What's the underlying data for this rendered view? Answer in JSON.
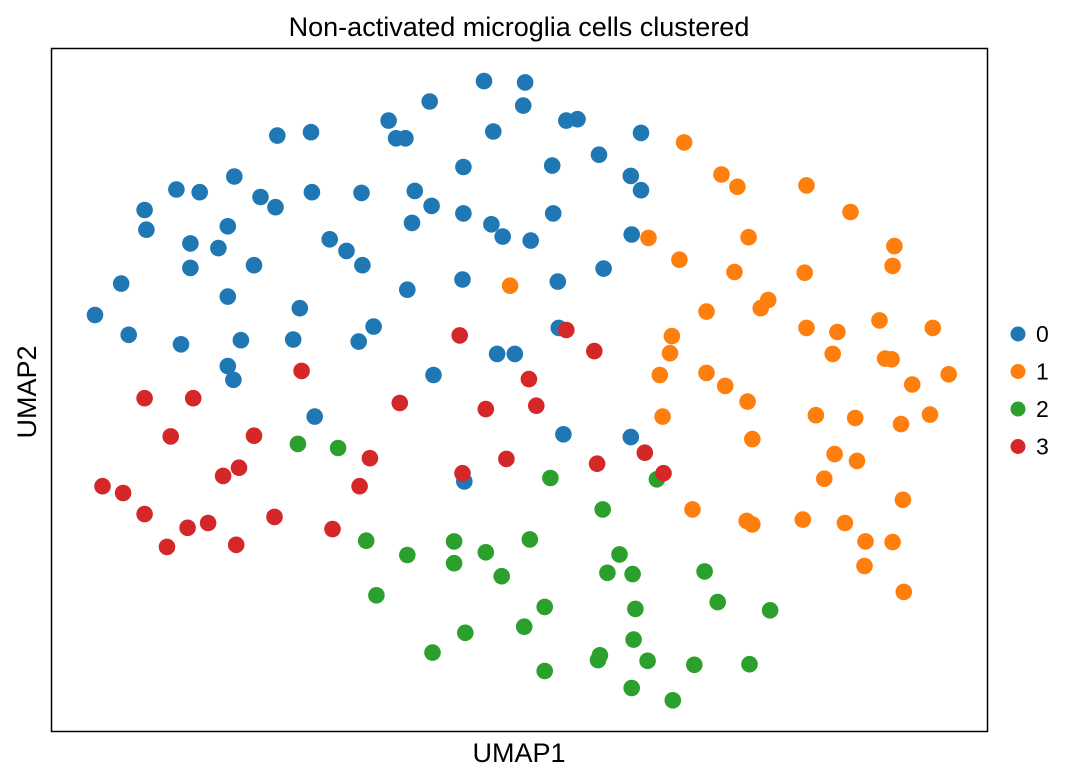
{
  "chart_data": {
    "type": "scatter",
    "title": "Non-activated microglia cells clustered",
    "xlabel": "UMAP1",
    "ylabel": "UMAP2",
    "xlim": [
      0,
      100
    ],
    "ylim": [
      0,
      100
    ],
    "grid": false,
    "ticks_shown": false,
    "legend_placement": "right, outside plot",
    "series": [
      {
        "name": "0",
        "color": "#1f77b4",
        "points": [
          [
            46.2,
            95.3
          ],
          [
            50.6,
            95.1
          ],
          [
            50.4,
            91.7
          ],
          [
            40.4,
            92.3
          ],
          [
            55.0,
            89.5
          ],
          [
            56.2,
            89.7
          ],
          [
            47.2,
            87.9
          ],
          [
            63.0,
            87.7
          ],
          [
            24.1,
            87.3
          ],
          [
            27.7,
            87.8
          ],
          [
            36.0,
            89.5
          ],
          [
            36.8,
            86.9
          ],
          [
            37.8,
            86.9
          ],
          [
            58.5,
            84.5
          ],
          [
            53.5,
            82.9
          ],
          [
            44.0,
            82.7
          ],
          [
            61.9,
            81.4
          ],
          [
            19.5,
            81.3
          ],
          [
            13.3,
            79.4
          ],
          [
            15.8,
            79.0
          ],
          [
            22.3,
            78.3
          ],
          [
            27.8,
            79.0
          ],
          [
            33.1,
            78.9
          ],
          [
            38.8,
            79.2
          ],
          [
            63.0,
            79.3
          ],
          [
            9.9,
            76.4
          ],
          [
            23.9,
            76.8
          ],
          [
            40.6,
            77.0
          ],
          [
            44.0,
            75.9
          ],
          [
            53.6,
            75.9
          ],
          [
            10.1,
            73.5
          ],
          [
            18.8,
            74.0
          ],
          [
            38.5,
            74.5
          ],
          [
            47.0,
            74.3
          ],
          [
            48.2,
            72.5
          ],
          [
            62.0,
            72.8
          ],
          [
            29.7,
            72.1
          ],
          [
            14.8,
            71.5
          ],
          [
            17.8,
            70.8
          ],
          [
            31.5,
            70.4
          ],
          [
            51.2,
            71.9
          ],
          [
            33.2,
            68.3
          ],
          [
            14.8,
            67.9
          ],
          [
            21.6,
            68.3
          ],
          [
            43.9,
            66.2
          ],
          [
            7.4,
            65.6
          ],
          [
            38.0,
            64.7
          ],
          [
            54.1,
            65.9
          ],
          [
            59.0,
            67.8
          ],
          [
            18.8,
            63.7
          ],
          [
            4.6,
            61.0
          ],
          [
            26.5,
            62.0
          ],
          [
            34.4,
            59.3
          ],
          [
            8.2,
            58.1
          ],
          [
            54.2,
            59.1
          ],
          [
            13.8,
            56.7
          ],
          [
            20.2,
            57.3
          ],
          [
            25.8,
            57.4
          ],
          [
            32.8,
            57.1
          ],
          [
            47.6,
            55.3
          ],
          [
            49.5,
            55.3
          ],
          [
            19.4,
            51.5
          ],
          [
            18.8,
            53.5
          ],
          [
            40.8,
            52.2
          ],
          [
            28.1,
            46.1
          ],
          [
            54.7,
            43.5
          ],
          [
            61.9,
            43.1
          ],
          [
            44.1,
            36.6
          ]
        ]
      },
      {
        "name": "1",
        "color": "#ff7f0e",
        "points": [
          [
            67.6,
            86.3
          ],
          [
            71.6,
            81.6
          ],
          [
            73.3,
            79.8
          ],
          [
            80.7,
            80.0
          ],
          [
            85.4,
            76.1
          ],
          [
            63.8,
            72.3
          ],
          [
            74.5,
            72.4
          ],
          [
            90.1,
            71.1
          ],
          [
            67.1,
            69.1
          ],
          [
            73.0,
            67.3
          ],
          [
            80.5,
            67.2
          ],
          [
            89.9,
            68.2
          ],
          [
            49.0,
            65.3
          ],
          [
            76.6,
            63.2
          ],
          [
            70.0,
            61.5
          ],
          [
            75.8,
            62.0
          ],
          [
            88.5,
            60.2
          ],
          [
            94.2,
            59.1
          ],
          [
            66.3,
            57.9
          ],
          [
            80.7,
            59.1
          ],
          [
            84.0,
            58.5
          ],
          [
            66.1,
            55.4
          ],
          [
            83.5,
            55.3
          ],
          [
            89.1,
            54.6
          ],
          [
            89.8,
            54.5
          ],
          [
            65.0,
            52.2
          ],
          [
            70.0,
            52.5
          ],
          [
            72.0,
            50.6
          ],
          [
            92.0,
            50.8
          ],
          [
            95.9,
            52.3
          ],
          [
            74.4,
            48.3
          ],
          [
            65.3,
            46.1
          ],
          [
            81.7,
            46.3
          ],
          [
            85.9,
            45.9
          ],
          [
            90.8,
            45.0
          ],
          [
            93.9,
            46.4
          ],
          [
            74.9,
            42.8
          ],
          [
            83.7,
            40.6
          ],
          [
            86.1,
            39.6
          ],
          [
            82.6,
            37.0
          ],
          [
            91.0,
            33.9
          ],
          [
            68.5,
            32.5
          ],
          [
            74.3,
            30.8
          ],
          [
            74.9,
            30.3
          ],
          [
            80.3,
            31.0
          ],
          [
            84.8,
            30.5
          ],
          [
            87.0,
            27.8
          ],
          [
            89.9,
            27.7
          ],
          [
            86.9,
            24.2
          ],
          [
            91.1,
            20.4
          ]
        ]
      },
      {
        "name": "2",
        "color": "#2ca02c",
        "points": [
          [
            26.3,
            42.1
          ],
          [
            30.6,
            41.5
          ],
          [
            53.3,
            37.1
          ],
          [
            64.7,
            36.9
          ],
          [
            58.9,
            32.5
          ],
          [
            33.6,
            27.9
          ],
          [
            43.0,
            27.8
          ],
          [
            38.0,
            25.8
          ],
          [
            46.4,
            26.2
          ],
          [
            51.1,
            28.1
          ],
          [
            60.7,
            25.9
          ],
          [
            43.0,
            24.6
          ],
          [
            48.1,
            22.7
          ],
          [
            59.4,
            23.2
          ],
          [
            62.1,
            23.0
          ],
          [
            69.8,
            23.4
          ],
          [
            34.7,
            19.9
          ],
          [
            52.7,
            18.2
          ],
          [
            62.4,
            17.9
          ],
          [
            71.2,
            18.9
          ],
          [
            76.8,
            17.7
          ],
          [
            50.5,
            15.3
          ],
          [
            44.2,
            14.4
          ],
          [
            62.2,
            13.4
          ],
          [
            40.7,
            11.5
          ],
          [
            58.6,
            11.1
          ],
          [
            58.4,
            10.4
          ],
          [
            63.7,
            10.3
          ],
          [
            68.7,
            9.7
          ],
          [
            74.6,
            9.8
          ],
          [
            52.7,
            8.8
          ],
          [
            62.0,
            6.3
          ],
          [
            66.4,
            4.5
          ]
        ]
      },
      {
        "name": "3",
        "color": "#d62728",
        "points": [
          [
            43.6,
            58.0
          ],
          [
            55.0,
            58.8
          ],
          [
            58.0,
            55.7
          ],
          [
            26.7,
            52.8
          ],
          [
            51.0,
            51.6
          ],
          [
            15.1,
            48.8
          ],
          [
            9.9,
            48.8
          ],
          [
            37.2,
            48.1
          ],
          [
            46.4,
            47.2
          ],
          [
            51.8,
            47.7
          ],
          [
            12.7,
            43.2
          ],
          [
            21.6,
            43.3
          ],
          [
            34.0,
            40.0
          ],
          [
            48.6,
            39.9
          ],
          [
            58.3,
            39.2
          ],
          [
            63.4,
            40.8
          ],
          [
            43.9,
            37.8
          ],
          [
            20.0,
            38.6
          ],
          [
            18.3,
            37.4
          ],
          [
            65.4,
            37.8
          ],
          [
            32.9,
            35.9
          ],
          [
            5.4,
            35.9
          ],
          [
            7.6,
            34.9
          ],
          [
            9.9,
            31.8
          ],
          [
            23.8,
            31.4
          ],
          [
            16.7,
            30.5
          ],
          [
            14.5,
            29.8
          ],
          [
            30.0,
            29.6
          ],
          [
            19.7,
            27.3
          ],
          [
            12.3,
            27.0
          ]
        ]
      }
    ]
  }
}
